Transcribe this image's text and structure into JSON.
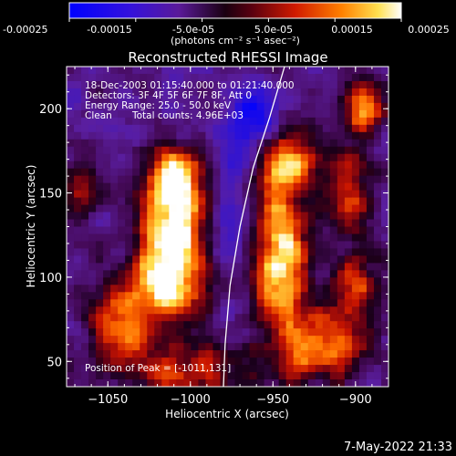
{
  "colorbar": {
    "tick_labels": [
      "-0.00025",
      "-0.00015",
      "-5.0e-05",
      "5.0e-05",
      "0.00015",
      "0.00025"
    ],
    "unit_label": "(photons cm⁻² s⁻¹ asec⁻²)",
    "range": [
      -0.00025,
      0.00025
    ]
  },
  "chart_data": {
    "type": "heatmap",
    "title": "Reconstructed RHESSI Image",
    "xlabel": "Heliocentric X (arcsec)",
    "ylabel": "Heliocentric Y (arcsec)",
    "xlim": [
      -1075,
      -880
    ],
    "ylim": [
      35,
      225
    ],
    "x_ticks": [
      -1050,
      -1000,
      -950,
      -900
    ],
    "x_tick_labels": [
      "−1050",
      "−1000",
      "−950",
      "−900"
    ],
    "y_ticks": [
      50,
      100,
      150,
      200
    ],
    "y_tick_labels": [
      "50",
      "100",
      "150",
      "200"
    ],
    "colormap": "rhessi-blue-purple-red-yellow-white",
    "annotations": [
      "18-Dec-2003 01:15:40.000 to 01:21:40.000",
      "Detectors: 3F 4F 5F 6F 7F 8F, Att 0",
      "Energy Range: 25.0 - 50.0 keV",
      "Clean",
      "Total counts: 4.96E+03",
      "Position of Peak = [-1011,131]"
    ],
    "peak": [
      -1011,
      131
    ],
    "limb_arc": {
      "points": [
        [
          -943,
          225
        ],
        [
          -952,
          195
        ],
        [
          -962,
          165
        ],
        [
          -970,
          130
        ],
        [
          -976,
          95
        ],
        [
          -979,
          60
        ],
        [
          -980,
          35
        ]
      ]
    },
    "hotspots": [
      {
        "x": -1010,
        "y": 128,
        "sx": 13,
        "sy": 26,
        "amp": 1.0
      },
      {
        "x": -1008,
        "y": 160,
        "sx": 10,
        "sy": 12,
        "amp": 0.6
      },
      {
        "x": -1018,
        "y": 95,
        "sx": 18,
        "sy": 16,
        "amp": 0.65
      },
      {
        "x": -1045,
        "y": 70,
        "sx": 12,
        "sy": 15,
        "amp": 0.55
      },
      {
        "x": -1000,
        "y": 45,
        "sx": 25,
        "sy": 10,
        "amp": 0.55
      },
      {
        "x": -945,
        "y": 115,
        "sx": 12,
        "sy": 32,
        "amp": 0.85
      },
      {
        "x": -940,
        "y": 170,
        "sx": 11,
        "sy": 14,
        "amp": 0.55
      },
      {
        "x": -895,
        "y": 200,
        "sx": 8,
        "sy": 10,
        "amp": 0.8
      },
      {
        "x": -905,
        "y": 150,
        "sx": 10,
        "sy": 16,
        "amp": 0.55
      },
      {
        "x": -920,
        "y": 60,
        "sx": 18,
        "sy": 14,
        "amp": 0.7
      },
      {
        "x": -900,
        "y": 95,
        "sx": 12,
        "sy": 14,
        "amp": 0.45
      },
      {
        "x": -1065,
        "y": 150,
        "sx": 8,
        "sy": 10,
        "amp": 0.35
      }
    ],
    "cold_regions": [
      {
        "x": -960,
        "y": 195,
        "sx": 10,
        "sy": 14,
        "amp": 0.8
      },
      {
        "x": -975,
        "y": 140,
        "sx": 8,
        "sy": 30,
        "amp": 0.55
      },
      {
        "x": -1040,
        "y": 110,
        "sx": 10,
        "sy": 10,
        "amp": 0.3
      }
    ]
  },
  "footer": {
    "timestamp": "7-May-2022 21:33"
  }
}
